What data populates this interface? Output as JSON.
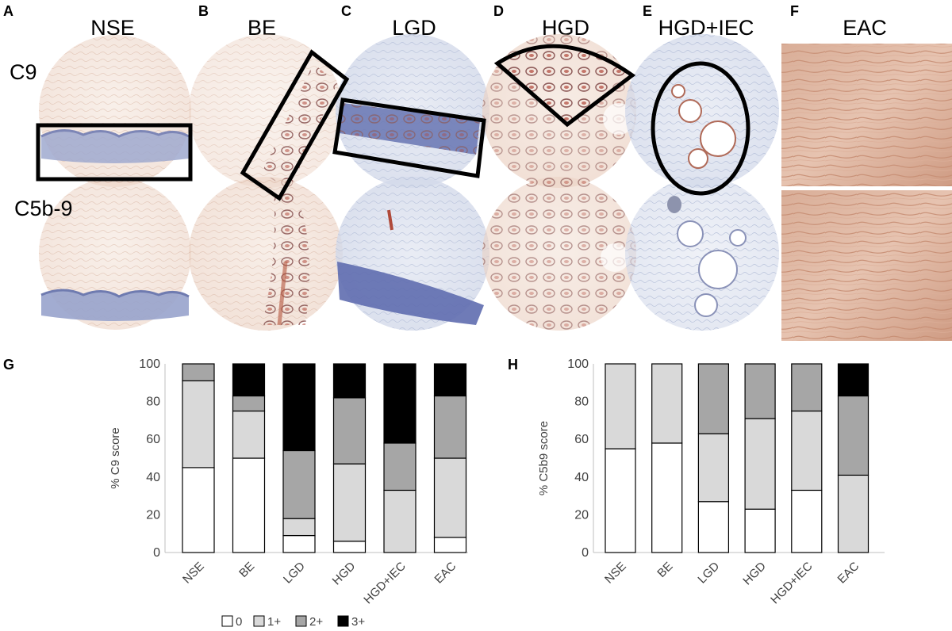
{
  "panels": [
    {
      "letter": "A",
      "title": "NSE"
    },
    {
      "letter": "B",
      "title": "BE"
    },
    {
      "letter": "C",
      "title": "LGD"
    },
    {
      "letter": "D",
      "title": "HGD"
    },
    {
      "letter": "E",
      "title": "HGD+IEC"
    },
    {
      "letter": "F",
      "title": "EAC"
    }
  ],
  "row_labels": {
    "top": "C9",
    "bottom": "C5b-9"
  },
  "legend": [
    {
      "label": "0",
      "color": "#ffffff"
    },
    {
      "label": "1+",
      "color": "#d9d9d9"
    },
    {
      "label": "2+",
      "color": "#a6a6a6"
    },
    {
      "label": "3+",
      "color": "#000000"
    }
  ],
  "chart_data": [
    {
      "panel": "G",
      "type": "bar",
      "stacked": true,
      "ylabel": "% C9 score",
      "ylim": [
        0,
        100
      ],
      "yticks": [
        0,
        20,
        40,
        60,
        80,
        100
      ],
      "categories": [
        "NSE",
        "BE",
        "LGD",
        "HGD",
        "HGD+IEC",
        "EAC"
      ],
      "series": [
        {
          "name": "0",
          "values": [
            45,
            50,
            9,
            6,
            0,
            8
          ]
        },
        {
          "name": "1+",
          "values": [
            46,
            25,
            9,
            41,
            33,
            42
          ]
        },
        {
          "name": "2+",
          "values": [
            9,
            8,
            36,
            35,
            25,
            33
          ]
        },
        {
          "name": "3+",
          "values": [
            0,
            17,
            46,
            18,
            42,
            17
          ]
        }
      ]
    },
    {
      "panel": "H",
      "type": "bar",
      "stacked": true,
      "ylabel": "% C5b9 score",
      "ylim": [
        0,
        100
      ],
      "yticks": [
        0,
        20,
        40,
        60,
        80,
        100
      ],
      "categories": [
        "NSE",
        "BE",
        "LGD",
        "HGD",
        "HGD+IEC",
        "EAC"
      ],
      "series": [
        {
          "name": "0",
          "values": [
            55,
            58,
            27,
            23,
            33,
            0
          ]
        },
        {
          "name": "1+",
          "values": [
            45,
            42,
            36,
            48,
            42,
            41
          ]
        },
        {
          "name": "2+",
          "values": [
            0,
            0,
            37,
            29,
            25,
            42
          ]
        },
        {
          "name": "3+",
          "values": [
            0,
            0,
            0,
            0,
            0,
            17
          ]
        }
      ]
    }
  ]
}
